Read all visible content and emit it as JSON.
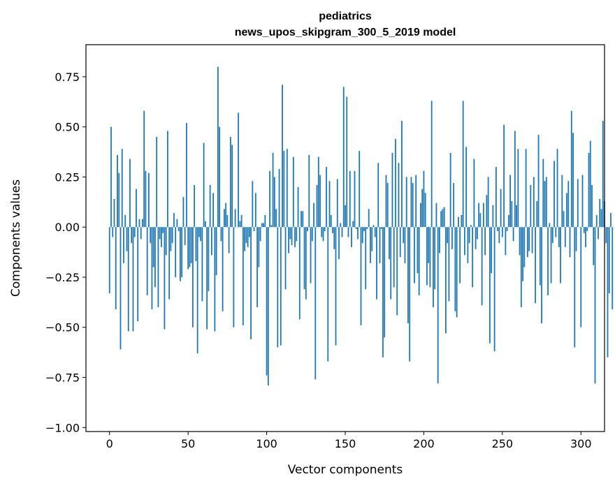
{
  "chart_data": {
    "type": "bar",
    "title": "pediatrics",
    "subtitle": "news_upos_skipgram_300_5_2019 model",
    "xlabel": "Vector components",
    "ylabel": "Components values",
    "xlim": [
      -15,
      315
    ],
    "ylim": [
      -1.02,
      0.91
    ],
    "xticks": [
      0,
      50,
      100,
      150,
      200,
      250,
      300
    ],
    "xtick_labels": [
      "0",
      "50",
      "100",
      "150",
      "200",
      "250",
      "300"
    ],
    "yticks": [
      -1.0,
      -0.75,
      -0.5,
      -0.25,
      0.0,
      0.25,
      0.5,
      0.75
    ],
    "ytick_labels": [
      "−1.00",
      "−0.75",
      "−0.50",
      "−0.25",
      "0.00",
      "0.25",
      "0.50",
      "0.75"
    ],
    "bar_color": "#1f77b4",
    "grid": false,
    "values": [
      -0.33,
      0.5,
      -0.05,
      0.14,
      -0.41,
      0.36,
      0.27,
      -0.61,
      0.39,
      -0.18,
      0.06,
      -0.12,
      -0.52,
      0.34,
      -0.08,
      -0.52,
      -0.05,
      0.19,
      -0.47,
      0.04,
      -0.06,
      0.04,
      0.58,
      0.28,
      -0.34,
      0.27,
      -0.08,
      -0.41,
      -0.2,
      -0.3,
      0.45,
      -0.4,
      -0.06,
      -0.1,
      -0.03,
      -0.51,
      -0.14,
      0.48,
      -0.36,
      -0.12,
      -0.08,
      0.07,
      -0.25,
      0.04,
      -0.02,
      -0.27,
      -0.25,
      0.15,
      -0.09,
      0.52,
      -0.21,
      -0.2,
      -0.18,
      -0.5,
      0.21,
      -0.17,
      -0.63,
      -0.05,
      -0.07,
      -0.37,
      0.42,
      0.03,
      -0.51,
      -0.32,
      0.21,
      -0.14,
      0.17,
      -0.52,
      -0.24,
      0.8,
      0.5,
      -0.07,
      -0.42,
      0.09,
      0.12,
      0.06,
      -0.13,
      0.45,
      0.41,
      -0.5,
      0.09,
      0.0,
      0.57,
      0.03,
      0.06,
      -0.49,
      -0.12,
      -0.08,
      -0.1,
      -0.05,
      -0.56,
      0.23,
      -0.02,
      0.17,
      -0.4,
      -0.2,
      -0.07,
      0.02,
      0.02,
      0.06,
      -0.74,
      -0.79,
      0.28,
      0.01,
      0.37,
      0.25,
      0.09,
      -0.6,
      0.29,
      -0.59,
      0.71,
      0.38,
      -0.31,
      0.39,
      -0.13,
      -0.06,
      -0.09,
      0.35,
      -0.1,
      -0.07,
      0.2,
      -0.46,
      0.08,
      0.08,
      -0.31,
      -0.36,
      -0.02,
      0.36,
      -0.28,
      -0.07,
      0.12,
      -0.76,
      0.21,
      0.35,
      0.26,
      -0.05,
      -0.07,
      -0.02,
      0.3,
      -0.67,
      0.23,
      0.06,
      -0.03,
      -0.11,
      -0.59,
      0.24,
      -0.16,
      0.02,
      -0.05,
      0.7,
      0.11,
      0.65,
      -0.05,
      0.28,
      -0.1,
      0.03,
      0.28,
      -0.01,
      -0.06,
      0.38,
      -0.49,
      -0.08,
      -0.02,
      -0.31,
      -0.01,
      0.09,
      -0.18,
      -0.12,
      0.01,
      -0.05,
      -0.36,
      0.32,
      -0.18,
      -0.01,
      -0.65,
      -0.55,
      0.26,
      0.22,
      -0.16,
      -0.36,
      0.37,
      -0.3,
      0.44,
      -0.44,
      0.32,
      -0.15,
      0.53,
      -0.08,
      -0.18,
      0.25,
      -0.48,
      -0.67,
      0.25,
      0.22,
      -0.28,
      0.26,
      -0.23,
      -0.34,
      0.12,
      0.19,
      0.28,
      0.17,
      -0.29,
      -0.18,
      -0.3,
      0.63,
      -0.4,
      -0.31,
      0.12,
      -0.78,
      -0.13,
      0.08,
      0.09,
      0.1,
      -0.53,
      -0.08,
      -0.37,
      0.37,
      -0.11,
      0.22,
      -0.42,
      -0.45,
      0.05,
      -0.28,
      0.06,
      0.63,
      -0.14,
      0.4,
      -0.18,
      -0.08,
      0.01,
      -0.3,
      0.34,
      -0.11,
      -0.06,
      0.12,
      0.07,
      -0.39,
      0.12,
      -0.14,
      0.16,
      0.25,
      -0.58,
      -0.23,
      0.11,
      -0.62,
      0.3,
      -0.02,
      -0.08,
      0.19,
      -0.05,
      0.51,
      -0.14,
      -0.02,
      0.06,
      0.26,
      0.13,
      -0.07,
      0.48,
      0.11,
      0.39,
      -0.14,
      -0.4,
      -0.27,
      -0.2,
      0.39,
      -0.15,
      -0.12,
      0.21,
      -0.13,
      0.25,
      -0.38,
      0.13,
      0.46,
      -0.29,
      -0.48,
      0.34,
      0.23,
      0.25,
      -0.34,
      0.02,
      -0.28,
      -0.08,
      0.33,
      -0.05,
      0.39,
      -0.1,
      -0.28,
      0.26,
      0.08,
      -0.1,
      0.17,
      0.23,
      -0.15,
      0.58,
      0.47,
      -0.6,
      -0.12,
      0.24,
      0.0,
      -0.5,
      0.26,
      -0.03,
      -0.1,
      -0.02,
      0.37,
      0.43,
      0.21,
      -0.19,
      -0.78,
      0.06,
      -0.06,
      0.14,
      0.09,
      0.53,
      0.13,
      -0.08,
      -0.65,
      -0.33,
      0.07,
      -0.41
    ]
  }
}
